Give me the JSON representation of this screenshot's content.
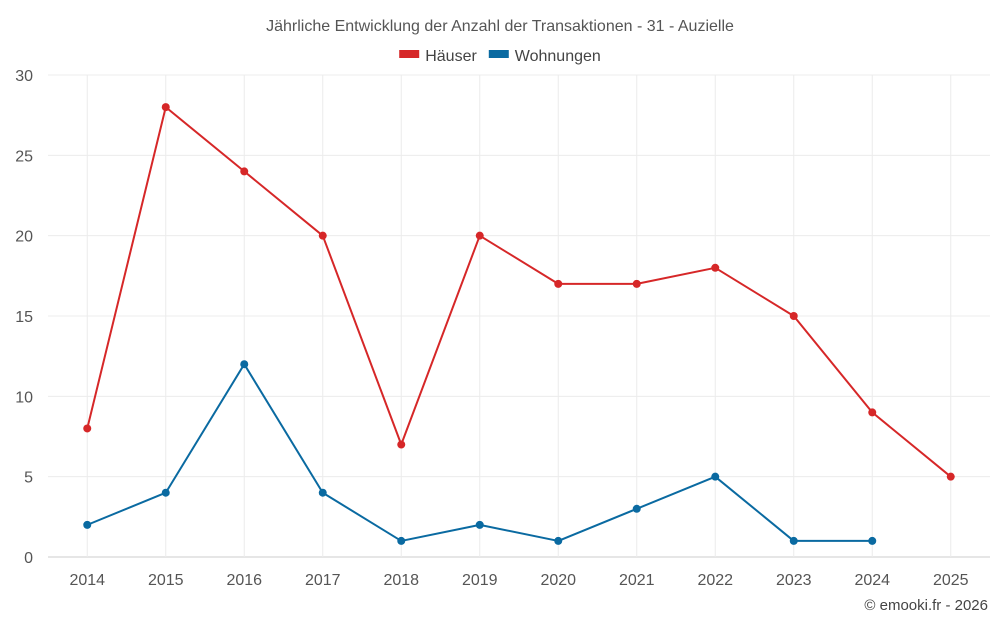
{
  "chart_data": {
    "type": "line",
    "title": "Jährliche Entwicklung der Anzahl der Transaktionen - 31 - Auzielle",
    "xlabel": "",
    "ylabel": "",
    "x": [
      "2014",
      "2015",
      "2016",
      "2017",
      "2018",
      "2019",
      "2020",
      "2021",
      "2022",
      "2023",
      "2024",
      "2025"
    ],
    "ylim": [
      0,
      30
    ],
    "yticks": [
      "0",
      "5",
      "10",
      "15",
      "20",
      "25",
      "30"
    ],
    "grid": true,
    "legend_position": "top-center",
    "series": [
      {
        "name": "Häuser",
        "color": "#d62728",
        "values": [
          8,
          28,
          24,
          20,
          7,
          20,
          17,
          17,
          18,
          15,
          9,
          5
        ]
      },
      {
        "name": "Wohnungen",
        "color": "#0a6aa1",
        "values": [
          2,
          4,
          12,
          4,
          1,
          2,
          1,
          3,
          5,
          1,
          1,
          null
        ]
      }
    ]
  },
  "credit": "© emooki.fr - 2026"
}
